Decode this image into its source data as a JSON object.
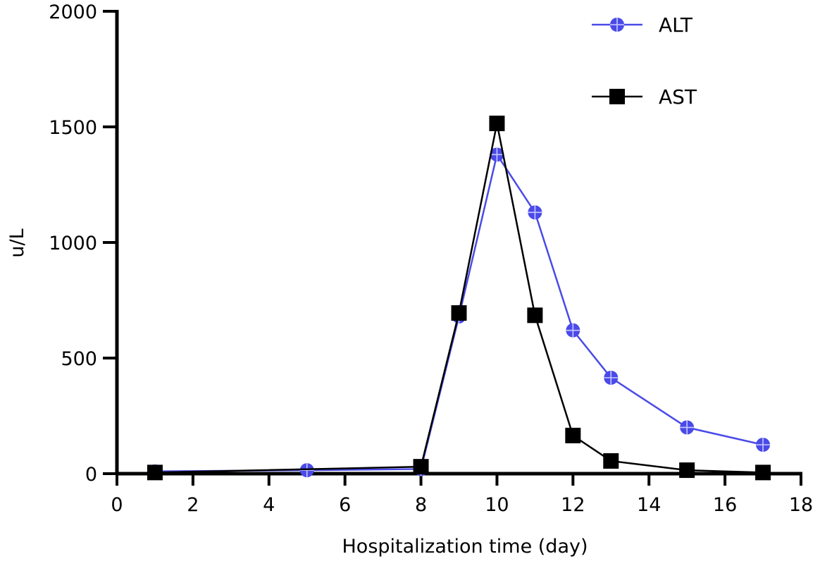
{
  "chart_data": {
    "type": "line",
    "title": "",
    "xlabel": "Hospitalization time (day)",
    "ylabel": "u/L",
    "xlim": [
      0,
      18
    ],
    "ylim": [
      0,
      2000
    ],
    "x_ticks": [
      "0",
      "2",
      "4",
      "6",
      "8",
      "10",
      "12",
      "14",
      "16",
      "18"
    ],
    "y_ticks": [
      "0",
      "500",
      "1000",
      "1500",
      "2000"
    ],
    "grid": false,
    "legend_position": "top-right",
    "series": [
      {
        "name": "ALT",
        "color": "#4a4ae8",
        "marker": "circle-cross",
        "x": [
          1,
          5,
          8,
          9,
          10,
          11,
          12,
          13,
          15,
          17
        ],
        "y": [
          10,
          15,
          20,
          680,
          1380,
          1130,
          620,
          415,
          200,
          125
        ]
      },
      {
        "name": "AST",
        "color": "#000000",
        "marker": "square",
        "x": [
          1,
          8,
          9,
          10,
          11,
          12,
          13,
          15,
          17
        ],
        "y": [
          5,
          30,
          695,
          1515,
          685,
          165,
          55,
          15,
          5
        ]
      }
    ]
  }
}
